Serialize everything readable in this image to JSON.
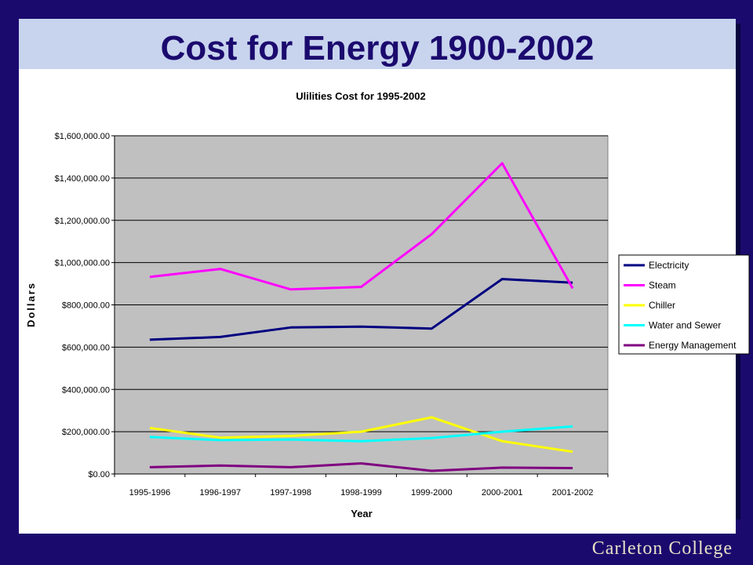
{
  "slide": {
    "title": "Cost for Energy 1900-2002",
    "footer": "Carleton College"
  },
  "colors": {
    "background": "#1b0a6e",
    "title_band": "#c8d4ee",
    "plot_area": "#c0c0c0"
  },
  "chart_data": {
    "type": "line",
    "title": "Ulilities Cost for 1995-2002",
    "xlabel": "Year",
    "ylabel": "Dollars",
    "ylim": [
      0,
      1600000
    ],
    "y_ticks": [
      0,
      200000,
      400000,
      600000,
      800000,
      1000000,
      1200000,
      1400000,
      1600000
    ],
    "y_tick_labels": [
      "$0.00",
      "$200,000.00",
      "$400,000.00",
      "$600,000.00",
      "$800,000.00",
      "$1,000,000.00",
      "$1,200,000.00",
      "$1,400,000.00",
      "$1,600,000.00"
    ],
    "categories": [
      "1995-1996",
      "1996-1997",
      "1997-1998",
      "1998-1999",
      "1999-2000",
      "2000-2001",
      "2001-2002"
    ],
    "grid": "horizontal",
    "legend_position": "right",
    "series": [
      {
        "name": "Electricity",
        "color": "#000080",
        "values": [
          635000,
          648000,
          693000,
          697000,
          688000,
          922000,
          905000
        ]
      },
      {
        "name": "Steam",
        "color": "#ff00ff",
        "values": [
          932000,
          970000,
          873000,
          885000,
          1135000,
          1470000,
          878000
        ]
      },
      {
        "name": "Chiller",
        "color": "#ffff00",
        "values": [
          218000,
          172000,
          180000,
          200000,
          268000,
          155000,
          105000
        ]
      },
      {
        "name": "Water and Sewer",
        "color": "#00ffff",
        "values": [
          175000,
          160000,
          163000,
          155000,
          170000,
          200000,
          225000
        ]
      },
      {
        "name": "Energy Management",
        "color": "#800080",
        "values": [
          32000,
          40000,
          32000,
          50000,
          15000,
          30000,
          28000
        ]
      }
    ]
  }
}
